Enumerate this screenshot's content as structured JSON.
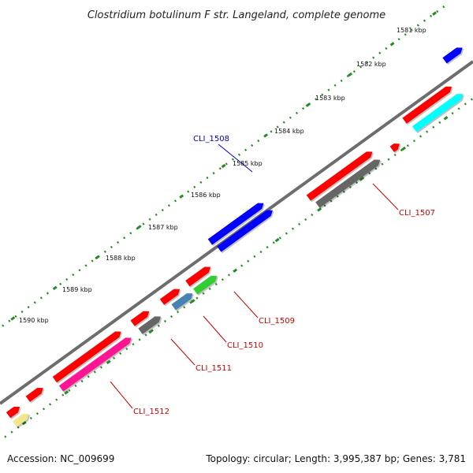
{
  "title": "Clostridium botulinum F str. Langeland, complete genome",
  "footer": {
    "accession": "Accession: NC_009699",
    "summary": "Topology: circular; Length: 3,995,387 bp; Genes: 3,781"
  },
  "ticks": [
    "1581 kbp",
    "1582 kbp",
    "1583 kbp",
    "1584 kbp",
    "1585 kbp",
    "1586 kbp",
    "1587 kbp",
    "1588 kbp",
    "1589 kbp",
    "1590 kbp"
  ],
  "gene_labels": {
    "cli_1507": "CLI_1507",
    "cli_1508": "CLI_1508",
    "cli_1509": "CLI_1509",
    "cli_1510": "CLI_1510",
    "cli_1511": "CLI_1511",
    "cli_1512": "CLI_1512"
  },
  "colors": {
    "backbone": "#808080",
    "gene": "#ff0000",
    "highlight_gene": "#0000ff",
    "feature_gray": "#666666",
    "feature_pink": "#ff1493",
    "feature_cyan": "#00ffff",
    "feature_steel": "#4682b4",
    "feature_green": "#32cd32",
    "feature_khaki": "#f0e68c",
    "ticks": "#228b22",
    "label_red": "#cc0000",
    "label_blue": "#0000cc"
  }
}
